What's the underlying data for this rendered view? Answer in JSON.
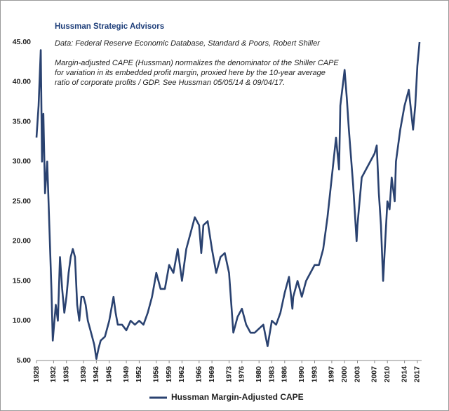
{
  "chart_data": {
    "type": "line",
    "title": "Hussman Strategic Advisors",
    "subtitle": "Data: Federal Reserve Economic Database, Standard & Poors, Robert Shiller",
    "note": [
      "Margin-adjusted CAPE (Hussman) normalizes the denominator of the Shiller CAPE",
      "for variation in its embedded profit margin, proxied here by the 10-year average",
      "ratio of corporate profits / GDP. See Hussman 05/05/14  & 09/04/17."
    ],
    "x": [
      1928,
      1928.5,
      1929,
      1929.3,
      1929.6,
      1930,
      1930.5,
      1931,
      1931.5,
      1931.8,
      1932.5,
      1933,
      1933.5,
      1934,
      1934.5,
      1935,
      1935.5,
      1936,
      1936.5,
      1937,
      1937.5,
      1938,
      1938.5,
      1939,
      1939.5,
      1940,
      1940.5,
      1941,
      1941.5,
      1942,
      1942.5,
      1943,
      1944,
      1945,
      1946,
      1946.5,
      1947,
      1948,
      1949,
      1950,
      1951,
      1952,
      1953,
      1954,
      1955,
      1956,
      1957,
      1958,
      1959,
      1960,
      1961,
      1962,
      1963,
      1964,
      1965,
      1966,
      1966.5,
      1967,
      1968,
      1969,
      1970,
      1971,
      1972,
      1973,
      1974,
      1975,
      1976,
      1977,
      1978,
      1979,
      1980,
      1981,
      1982,
      1983,
      1984,
      1985,
      1986,
      1987,
      1987.8,
      1988,
      1989,
      1990,
      1991,
      1992,
      1993,
      1994,
      1995,
      1996,
      1997,
      1998,
      1998.7,
      1999,
      2000,
      2000.5,
      2001,
      2002,
      2002.8,
      2003,
      2004,
      2005,
      2006,
      2007,
      2007.5,
      2008,
      2008.5,
      2009,
      2009.5,
      2010,
      2010.5,
      2011,
      2011.7,
      2012,
      2013,
      2014,
      2015,
      2016,
      2016.5,
      2017,
      2017.5
    ],
    "series": [
      {
        "name": "Hussman Margin-Adjusted CAPE",
        "color": "#2a4270",
        "values": [
          33,
          37,
          44,
          30,
          36,
          26,
          30,
          22,
          14,
          7.5,
          12,
          10,
          18,
          14,
          11,
          13,
          16,
          18,
          19,
          18,
          12,
          10,
          13,
          13,
          12,
          10,
          9,
          8,
          7,
          5.2,
          6.5,
          7.5,
          8,
          10,
          13,
          11,
          9.5,
          9.5,
          8.8,
          10,
          9.5,
          10,
          9.5,
          11,
          13,
          16,
          14,
          14,
          17,
          16,
          19,
          15,
          19,
          21,
          23,
          22,
          18.5,
          22,
          22.5,
          19,
          16,
          18,
          18.5,
          16,
          8.5,
          10.5,
          11.5,
          9.5,
          8.5,
          8.5,
          9,
          9.5,
          6.8,
          10,
          9.5,
          11,
          13.5,
          15.5,
          11.5,
          13,
          15,
          13,
          15,
          16,
          17,
          17,
          19,
          23,
          28,
          33,
          29,
          37,
          41.5,
          38,
          34,
          27,
          20,
          22,
          28,
          29,
          30,
          31,
          32,
          26,
          22,
          15,
          20,
          25,
          24,
          28,
          25,
          30,
          34,
          37,
          39,
          34,
          37,
          42,
          45
        ]
      }
    ],
    "xlim": [
      1928,
      2018
    ],
    "xticks": [
      1928,
      1932,
      1935,
      1939,
      1942,
      1945,
      1949,
      1952,
      1956,
      1959,
      1962,
      1966,
      1969,
      1973,
      1976,
      1980,
      1983,
      1986,
      1990,
      1993,
      1997,
      2000,
      2003,
      2007,
      2010,
      2014,
      2017
    ],
    "ylim": [
      5,
      45
    ],
    "yticks": [
      {
        "value": 5,
        "label": "5.00"
      },
      {
        "value": 10,
        "label": "10.00"
      },
      {
        "value": 15,
        "label": "15.00"
      },
      {
        "value": 20,
        "label": "20.00"
      },
      {
        "value": 25,
        "label": "25.00"
      },
      {
        "value": 30,
        "label": "30.00"
      },
      {
        "value": 35,
        "label": "35.00"
      },
      {
        "value": 40,
        "label": "40.00"
      },
      {
        "value": 45,
        "label": "45.00"
      }
    ],
    "grid": false
  }
}
